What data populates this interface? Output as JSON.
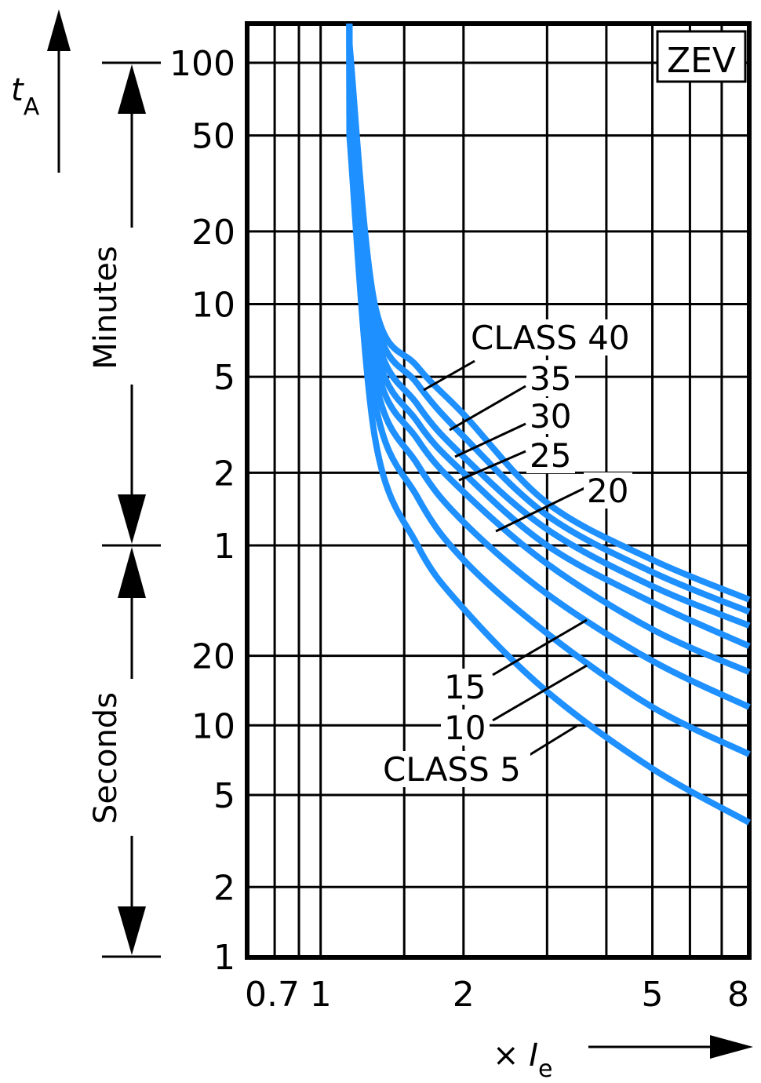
{
  "chart_data": {
    "type": "line",
    "title": "",
    "badge": "ZEV",
    "ylabel_symbol": "t",
    "ylabel_subscript": "A",
    "xlabel_symbol": "× I",
    "xlabel_subscript": "e",
    "x_scale": "log",
    "y_scale": "log",
    "xlim": [
      0.7,
      8
    ],
    "x_ticks": [
      {
        "value": 0.7,
        "label": "0.7"
      },
      {
        "value": 1,
        "label": "1"
      },
      {
        "value": 2,
        "label": "2"
      },
      {
        "value": 5,
        "label": "5"
      },
      {
        "value": 8,
        "label": "8"
      }
    ],
    "y_ticks": [
      {
        "label": "100"
      },
      {
        "label": "50"
      },
      {
        "label": "20"
      },
      {
        "label": "10"
      },
      {
        "label": "5"
      },
      {
        "label": "2"
      },
      {
        "label": "1"
      },
      {
        "label": "20"
      },
      {
        "label": "10"
      },
      {
        "label": "5"
      },
      {
        "label": "2"
      },
      {
        "label": "1"
      }
    ],
    "time_ranges": [
      {
        "label": "Minutes",
        "from": "1 min",
        "to": "100 min"
      },
      {
        "label": "Seconds",
        "from": "1 s",
        "to": "1 min"
      }
    ],
    "grid": true,
    "series_color": "#1e90ff",
    "series": [
      {
        "name": "CLASS 40",
        "points": [
          [
            1.15,
            7200
          ],
          [
            1.3,
            600
          ],
          [
            1.6,
            330
          ],
          [
            2,
            210
          ],
          [
            3,
            90
          ],
          [
            5,
            52
          ],
          [
            8,
            35
          ]
        ]
      },
      {
        "name": "35",
        "points": [
          [
            1.15,
            6600
          ],
          [
            1.3,
            540
          ],
          [
            1.6,
            280
          ],
          [
            2,
            170
          ],
          [
            3,
            80
          ],
          [
            5,
            46
          ],
          [
            8,
            31
          ]
        ]
      },
      {
        "name": "30",
        "points": [
          [
            1.15,
            6000
          ],
          [
            1.3,
            480
          ],
          [
            1.6,
            230
          ],
          [
            2,
            140
          ],
          [
            3,
            70
          ],
          [
            5,
            40
          ],
          [
            8,
            27
          ]
        ]
      },
      {
        "name": "25",
        "points": [
          [
            1.15,
            5400
          ],
          [
            1.3,
            420
          ],
          [
            1.6,
            195
          ],
          [
            2,
            120
          ],
          [
            3,
            60
          ],
          [
            5,
            34
          ],
          [
            8,
            22
          ]
        ]
      },
      {
        "name": "20",
        "points": [
          [
            1.15,
            4800
          ],
          [
            1.3,
            360
          ],
          [
            1.6,
            165
          ],
          [
            2,
            100
          ],
          [
            3,
            50
          ],
          [
            5,
            26
          ],
          [
            8,
            17
          ]
        ]
      },
      {
        "name": "15",
        "points": [
          [
            1.15,
            4200
          ],
          [
            1.3,
            300
          ],
          [
            1.6,
            130
          ],
          [
            2,
            75
          ],
          [
            3,
            37
          ],
          [
            5,
            19
          ],
          [
            8,
            12
          ]
        ]
      },
      {
        "name": "10",
        "points": [
          [
            1.15,
            3600
          ],
          [
            1.3,
            240
          ],
          [
            1.6,
            95
          ],
          [
            2,
            52
          ],
          [
            3,
            25
          ],
          [
            5,
            12
          ],
          [
            8,
            7.5
          ]
        ]
      },
      {
        "name": "CLASS 5",
        "points": [
          [
            1.15,
            3000
          ],
          [
            1.3,
            170
          ],
          [
            1.6,
            60
          ],
          [
            2,
            32
          ],
          [
            3,
            14
          ],
          [
            5,
            6.5
          ],
          [
            8,
            3.8
          ]
        ]
      }
    ]
  }
}
